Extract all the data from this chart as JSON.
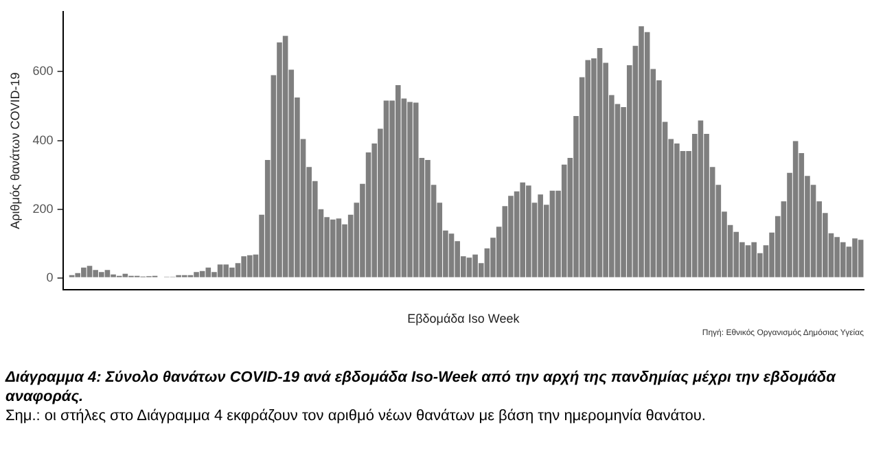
{
  "chart_data": {
    "type": "bar",
    "title": "Διάγραμμα 4: Σύνολο θανάτων COVID-19 ανά εβδομάδα Iso-Week από την αρχή της πανδημίας μέχρι την εβδομάδα αναφοράς.",
    "xlabel": "Εβδομάδα Iso Week",
    "ylabel": "Αριθμός θανάτων COVID-19",
    "annotations": [
      "Πηγή: Εθνικός Οργανισμός Δημόσιας Υγείας",
      "Σημ.: οι στήλες στο Διάγραμμα 4 εκφράζουν τον αριθμό νέων θανάτων με βάση την ημερομηνία θανάτου."
    ],
    "categories": [
      null,
      null,
      null,
      null,
      null,
      null,
      null,
      null,
      null,
      null,
      null,
      null,
      null,
      null,
      null,
      null,
      null,
      null,
      null,
      null,
      null,
      null,
      null,
      null,
      null,
      null,
      null,
      null,
      null,
      null,
      null,
      null,
      null,
      null,
      null,
      null,
      null,
      null,
      null,
      null,
      null,
      null,
      null,
      null,
      null,
      null,
      null,
      null,
      null,
      null,
      null,
      null,
      null,
      null,
      null,
      null,
      null,
      null,
      null,
      null,
      null,
      null,
      null,
      null,
      null,
      null,
      null,
      null,
      null,
      null,
      null,
      null,
      null,
      null,
      null,
      null,
      null,
      null,
      null,
      null,
      null,
      null,
      null,
      null,
      null,
      null,
      null,
      null,
      null,
      null,
      null,
      null,
      null,
      null,
      null,
      null,
      null,
      null,
      null,
      null,
      null,
      null,
      null,
      null,
      null,
      null,
      null,
      null,
      null,
      null,
      null,
      null,
      null,
      null,
      null,
      null,
      null,
      null,
      null,
      null,
      null,
      null,
      null,
      null,
      null,
      null,
      null,
      null,
      null,
      null,
      null,
      null,
      null,
      null,
      null
    ],
    "values": [
      0,
      8,
      14,
      30,
      35,
      23,
      17,
      23,
      10,
      6,
      12,
      6,
      6,
      4,
      5,
      6,
      2,
      3,
      3,
      8,
      8,
      8,
      17,
      20,
      30,
      17,
      39,
      39,
      30,
      43,
      63,
      66,
      68,
      184,
      343,
      590,
      685,
      704,
      606,
      525,
      404,
      323,
      282,
      200,
      177,
      170,
      173,
      156,
      184,
      219,
      274,
      365,
      391,
      434,
      516,
      516,
      561,
      522,
      512,
      510,
      349,
      343,
      271,
      219,
      138,
      129,
      107,
      63,
      59,
      68,
      43,
      86,
      117,
      149,
      209,
      239,
      252,
      278,
      269,
      219,
      243,
      213,
      254,
      254,
      330,
      349,
      471,
      584,
      634,
      639,
      669,
      626,
      532,
      506,
      497,
      619,
      675,
      732,
      715,
      608,
      575,
      454,
      404,
      391,
      369,
      369,
      419,
      458,
      419,
      323,
      271,
      193,
      154,
      134,
      104,
      95,
      104,
      72,
      95,
      132,
      180,
      223,
      306,
      398,
      363,
      297,
      271,
      223,
      189,
      130,
      119,
      104,
      91,
      115,
      111
    ],
    "color": "#7f7f7f",
    "ylim": [
      -35,
      775
    ],
    "yticks": [
      0,
      200,
      400,
      600
    ]
  }
}
